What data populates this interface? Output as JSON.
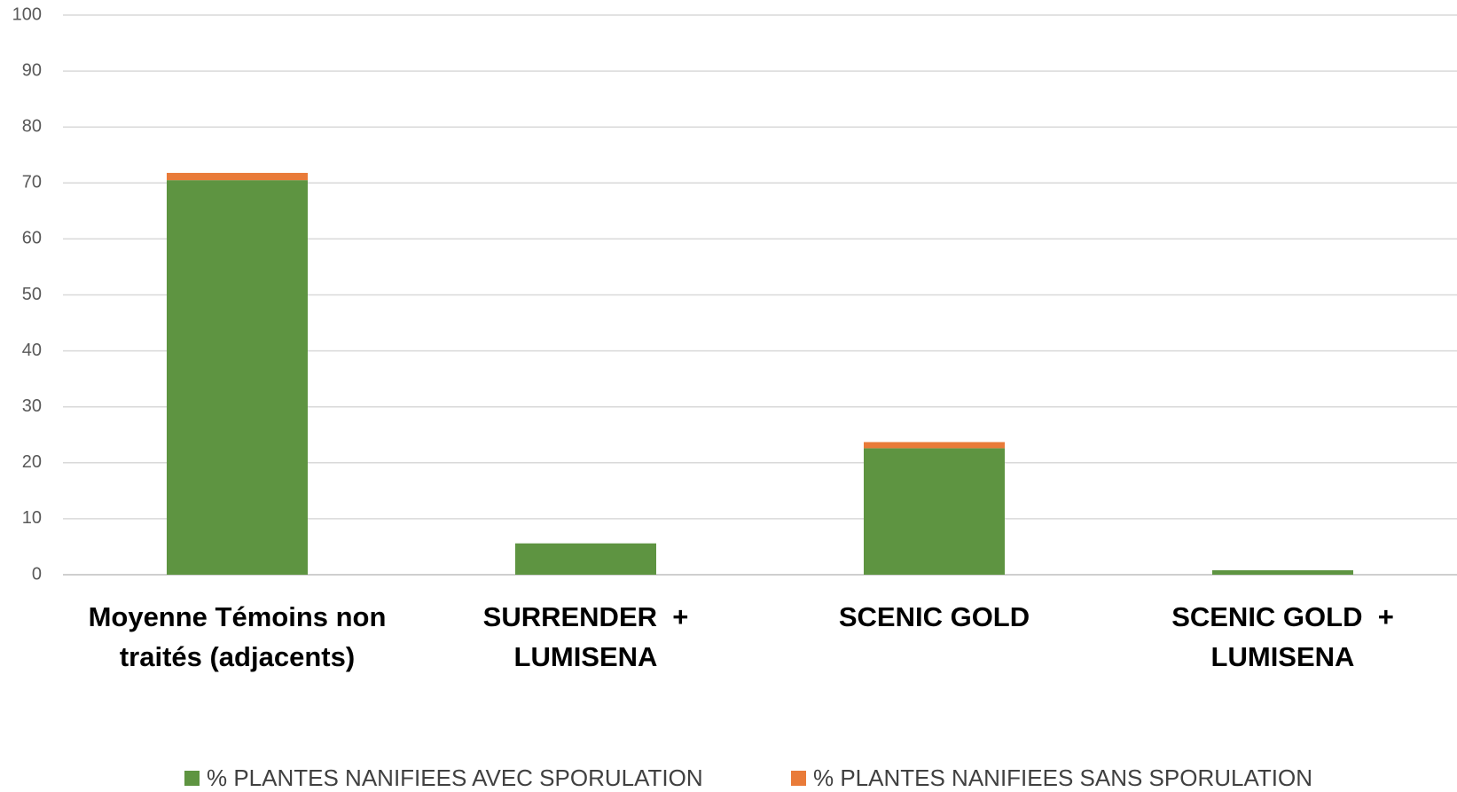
{
  "chart_data": {
    "type": "stacked_bar",
    "categories": [
      "Moyenne Témoins non traités (adjacents)",
      "SURRENDER  + LUMISENA",
      "SCENIC GOLD",
      "SCENIC GOLD  + LUMISENA"
    ],
    "series": [
      {
        "name": "% PLANTES NANIFIEES AVEC SPORULATION",
        "color": "#5e9441",
        "values": [
          70.5,
          5.6,
          22.6,
          0.8
        ]
      },
      {
        "name": "% PLANTES NANIFIEES SANS SPORULATION",
        "color": "#e97b39",
        "values": [
          1.3,
          0,
          1.1,
          0
        ]
      }
    ],
    "ylim": [
      0,
      100
    ],
    "yticks": [
      0,
      10,
      20,
      30,
      40,
      50,
      60,
      70,
      80,
      90,
      100
    ],
    "grid": true
  }
}
